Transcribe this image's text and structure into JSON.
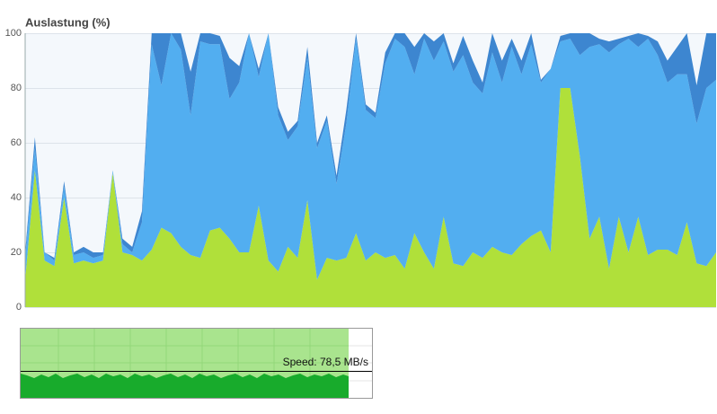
{
  "chart_data": {
    "type": "stacked-area",
    "title": "Auslastung (%)",
    "ylim": [
      0,
      100
    ],
    "yticks": [
      0,
      20,
      40,
      60,
      80,
      100
    ],
    "grid": true,
    "series": [
      {
        "color": "#b0e03a",
        "values": [
          10,
          50,
          17,
          15,
          40,
          16,
          17,
          16,
          17,
          49,
          20,
          19,
          17,
          21,
          29,
          27,
          22,
          19,
          18,
          28,
          29,
          25,
          20,
          20,
          37,
          17,
          13,
          22,
          18,
          39,
          10,
          18,
          17,
          18,
          27,
          17,
          20,
          18,
          19,
          14,
          27,
          20,
          14,
          33,
          16,
          15,
          20,
          18,
          22,
          20,
          19,
          23,
          26,
          28,
          20,
          80,
          80,
          55,
          25,
          33,
          14,
          33,
          20,
          33,
          19,
          21,
          21,
          19,
          31,
          16,
          15,
          20
        ]
      },
      {
        "color": "#52aef0",
        "values": [
          8,
          8,
          3,
          2,
          4,
          3,
          3,
          2,
          2,
          1,
          3,
          1,
          14,
          75,
          52,
          73,
          72,
          51,
          79,
          68,
          67,
          51,
          62,
          80,
          47,
          83,
          57,
          39,
          48,
          52,
          48,
          50,
          28,
          49,
          71,
          55,
          49,
          71,
          79,
          81,
          58,
          78,
          76,
          64,
          70,
          77,
          62,
          60,
          71,
          62,
          76,
          62,
          70,
          54,
          67,
          17,
          18,
          37,
          70,
          63,
          79,
          63,
          78,
          62,
          79,
          71,
          61,
          66,
          54,
          51,
          65,
          63
        ]
      },
      {
        "color": "#3d86d0",
        "values": [
          2,
          4,
          0,
          1,
          2,
          1,
          2,
          2,
          1,
          0,
          2,
          2,
          4,
          4,
          19,
          0,
          6,
          16,
          3,
          4,
          3,
          15,
          6,
          0,
          3,
          0,
          3,
          3,
          2,
          4,
          2,
          2,
          3,
          5,
          2,
          2,
          2,
          4,
          2,
          5,
          10,
          2,
          7,
          3,
          3,
          7,
          8,
          4,
          7,
          8,
          3,
          5,
          4,
          1,
          0,
          2,
          2,
          8,
          5,
          2,
          4,
          2,
          1,
          5,
          1,
          5,
          8,
          10,
          15,
          14,
          20,
          17
        ]
      }
    ]
  },
  "speed_label": "Speed: 78,5 MB/s"
}
